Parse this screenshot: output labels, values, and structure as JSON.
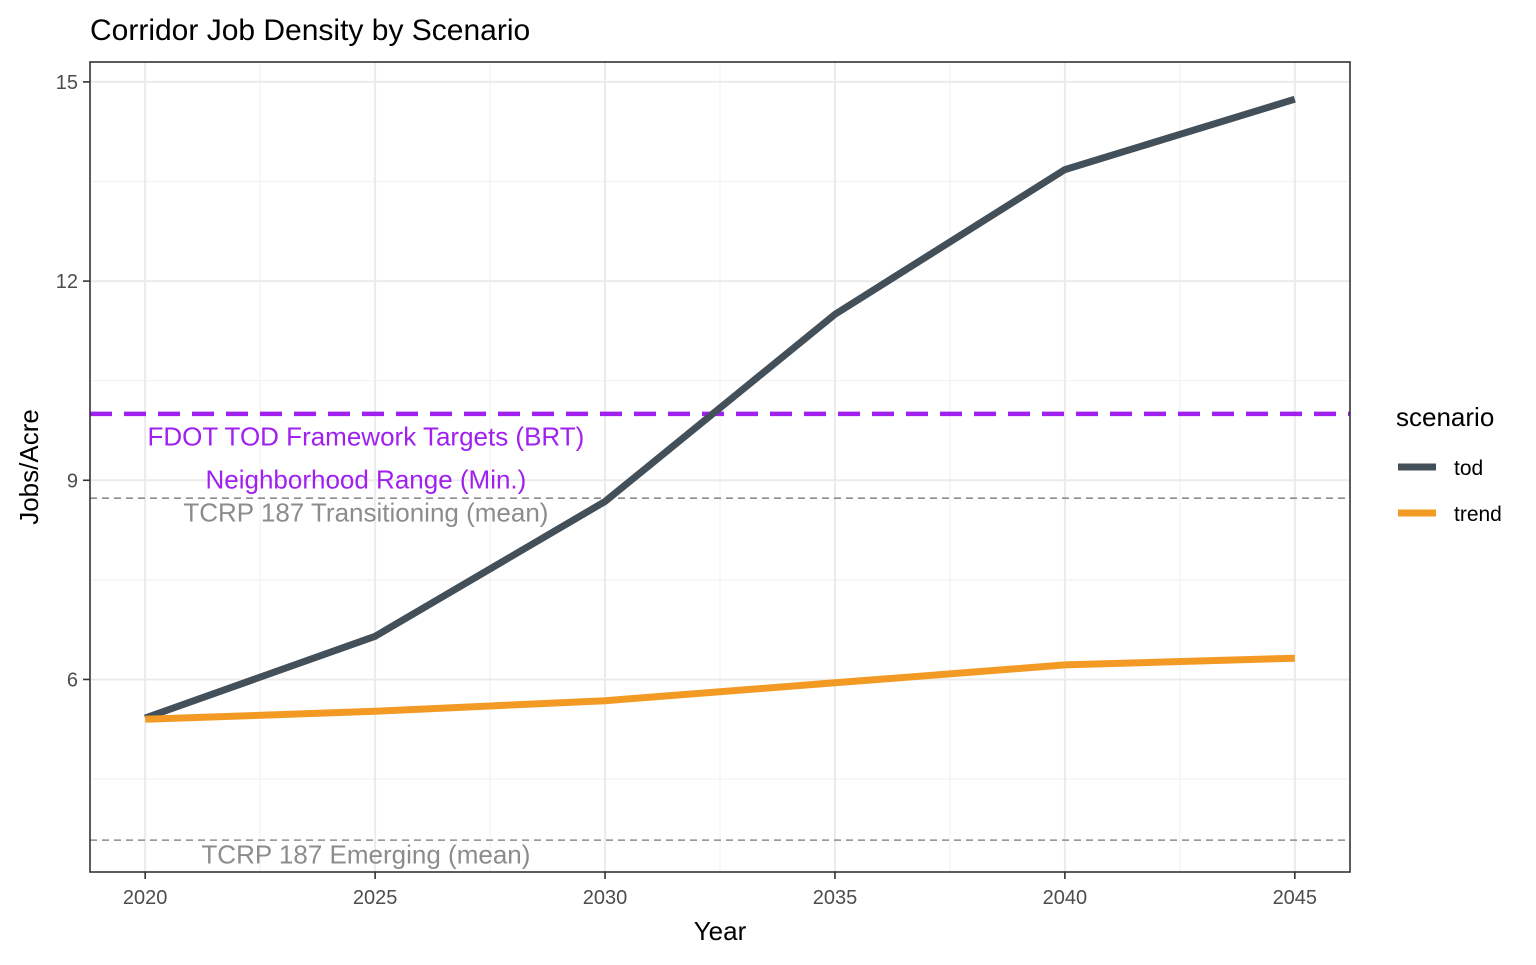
{
  "chart_data": {
    "type": "line",
    "title": "Corridor Job Density by Scenario",
    "xlabel": "Year",
    "ylabel": "Jobs/Acre",
    "xlim": [
      2018.8,
      2046.2
    ],
    "ylim": [
      3.1,
      15.3
    ],
    "x_ticks": [
      2020,
      2025,
      2030,
      2035,
      2040,
      2045
    ],
    "y_ticks": [
      6,
      9,
      12,
      15
    ],
    "grid": true,
    "legend": {
      "title": "scenario",
      "position": "right"
    },
    "series": [
      {
        "name": "tod",
        "color": "#434f59",
        "x": [
          2020,
          2025,
          2030,
          2035,
          2040,
          2045
        ],
        "values": [
          5.42,
          6.65,
          8.68,
          11.5,
          13.68,
          14.74
        ]
      },
      {
        "name": "trend",
        "color": "#f39a24",
        "x": [
          2020,
          2025,
          2030,
          2035,
          2040,
          2045
        ],
        "values": [
          5.4,
          5.52,
          5.68,
          5.95,
          6.22,
          6.32
        ]
      }
    ],
    "reference_lines": [
      {
        "y": 10,
        "style": "dashed-thick",
        "color": "#a020f0",
        "labels": [
          {
            "text": "FDOT TOD Framework Targets (BRT)",
            "x": 2024.8,
            "y": 9.63
          },
          {
            "text": "Neighborhood Range (Min.)",
            "x": 2024.8,
            "y": 8.98
          }
        ]
      },
      {
        "y": 8.73,
        "style": "dashed-thin",
        "color": "#8c8c8c",
        "labels": [
          {
            "text": "TCRP 187 Transitioning (mean)",
            "x": 2024.8,
            "y": 8.48
          }
        ]
      },
      {
        "y": 3.58,
        "style": "dashed-thin",
        "color": "#8c8c8c",
        "labels": [
          {
            "text": "TCRP 187 Emerging (mean)",
            "x": 2024.8,
            "y": 3.33
          }
        ]
      }
    ]
  }
}
